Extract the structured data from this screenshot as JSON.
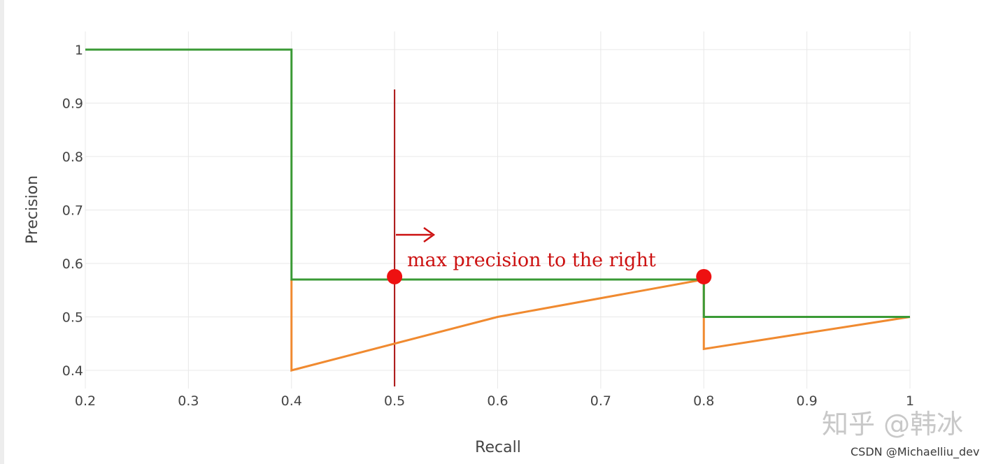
{
  "chart_data": {
    "type": "line",
    "xlabel": "Recall",
    "ylabel": "Precision",
    "xlim": [
      0.2,
      1
    ],
    "ylim": [
      0.4,
      1
    ],
    "x_ticks": [
      "0.2",
      "0.3",
      "0.4",
      "0.5",
      "0.6",
      "0.7",
      "0.8",
      "0.9",
      "1"
    ],
    "y_ticks": [
      "0.4",
      "0.5",
      "0.6",
      "0.7",
      "0.8",
      "0.9",
      "1"
    ],
    "grid": true,
    "series": [
      {
        "color": "#3a9a35",
        "x": [
          0.2,
          0.4,
          0.4,
          0.8,
          0.8,
          1.0
        ],
        "y": [
          1.0,
          1.0,
          0.57,
          0.57,
          0.5,
          0.5
        ]
      },
      {
        "color": "#f08a30",
        "x": [
          0.4,
          0.4,
          0.6,
          0.8,
          0.8,
          1.0
        ],
        "y": [
          0.57,
          0.4,
          0.5,
          0.57,
          0.44,
          0.5
        ]
      }
    ],
    "markers": [
      {
        "x": 0.5,
        "y": 0.57,
        "color": "#ee1111"
      },
      {
        "x": 0.8,
        "y": 0.57,
        "color": "#ee1111"
      }
    ],
    "vline": {
      "x": 0.5,
      "color": "#aa1111"
    },
    "annotation": {
      "text": "max precision to the right",
      "arrow": "→",
      "color": "#cc1111"
    }
  },
  "watermarks": {
    "zhihu": "知乎 @韩冰",
    "csdn": "CSDN @Michaelliu_dev"
  }
}
